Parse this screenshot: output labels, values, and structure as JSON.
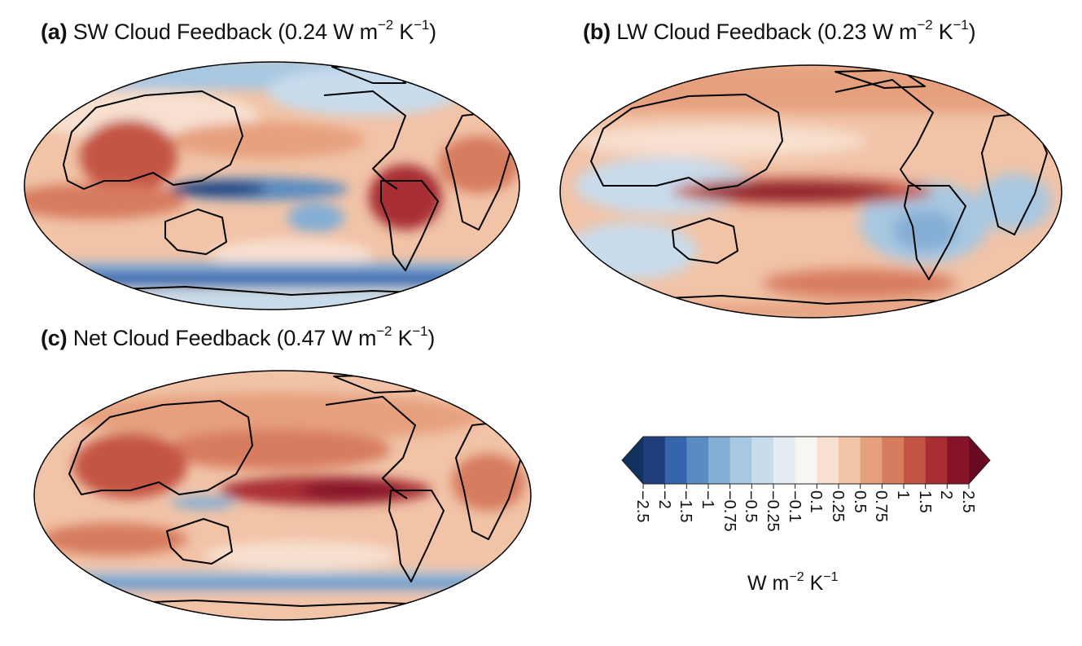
{
  "panels": [
    {
      "id": "a",
      "letter": "(a)",
      "name": "SW Cloud Feedback",
      "value_text": "(0.24 W m",
      "exp1": "−2",
      "unit2": " K",
      "exp2": "−1",
      "close": ")"
    },
    {
      "id": "b",
      "letter": "(b)",
      "name": "LW Cloud Feedback",
      "value_text": "(0.23 W m",
      "exp1": "−2",
      "unit2": " K",
      "exp2": "−1",
      "close": ")"
    },
    {
      "id": "c",
      "letter": "(c)",
      "name": "Net Cloud Feedback",
      "value_text": "(0.47 W m",
      "exp1": "−2",
      "unit2": " K",
      "exp2": "−1",
      "close": ")"
    }
  ],
  "colorbar": {
    "ticks": [
      "−2.5",
      "−2",
      "−1.5",
      "−1",
      "−0.75",
      "−0.5",
      "−0.25",
      "−0.1",
      "0.1",
      "0.25",
      "0.5",
      "0.75",
      "1",
      "1.5",
      "2",
      "2.5"
    ],
    "colors": [
      "#1f3d7a",
      "#3565ad",
      "#5a8cc2",
      "#84aed4",
      "#a8c8e1",
      "#c8dcec",
      "#e4ecf4",
      "#f7f6f3",
      "#f8e0d0",
      "#f1c3a7",
      "#e6a07e",
      "#d77c5e",
      "#c45545",
      "#a82e34",
      "#86132a"
    ],
    "under_color": "#13315f",
    "over_color": "#6a0a22",
    "label_main": "W m",
    "label_exp1": "−2",
    "label_unit2": " K",
    "label_exp2": "−1"
  }
}
